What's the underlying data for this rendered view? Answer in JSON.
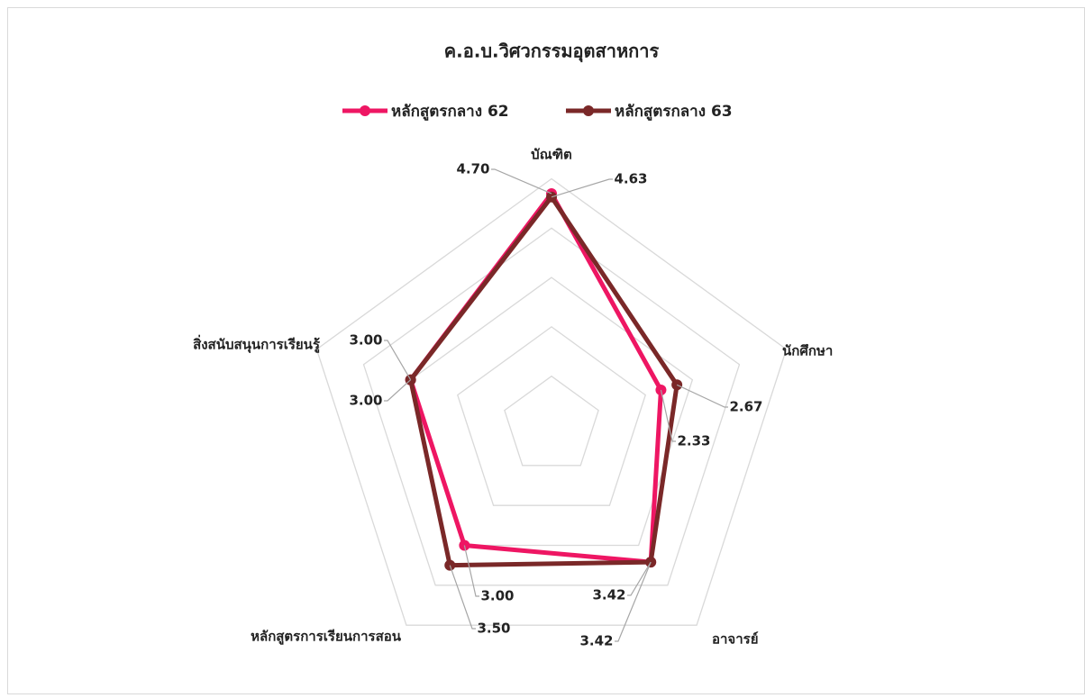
{
  "chart_data": {
    "type": "radar",
    "title": "ค.อ.บ.วิศวกรรมอุตสาหการ",
    "categories": [
      "บัณฑิต",
      "นักศึกษา",
      "อาจารย์",
      "หลักสูตรการเรียนการสอน",
      "สิ่งสนับสนุนการเรียนรู้"
    ],
    "series": [
      {
        "name": "หลักสูตรกลาง 62",
        "color": "#ee1663",
        "values": [
          4.7,
          2.33,
          3.42,
          3.0,
          3.0
        ],
        "value_labels": [
          "4.70",
          "2.33",
          "3.42",
          "3.00",
          "3.00"
        ]
      },
      {
        "name": "หลักสูตรกลาง 63",
        "color": "#7a2828",
        "values": [
          4.63,
          2.67,
          3.42,
          3.5,
          3.0
        ],
        "value_labels": [
          "4.63",
          "2.67",
          "3.42",
          "3.50",
          "3.00"
        ]
      }
    ],
    "rlim": [
      0,
      5
    ],
    "rticks": [
      0,
      1,
      2,
      3,
      4,
      5
    ],
    "grid": true,
    "legend": "top"
  }
}
